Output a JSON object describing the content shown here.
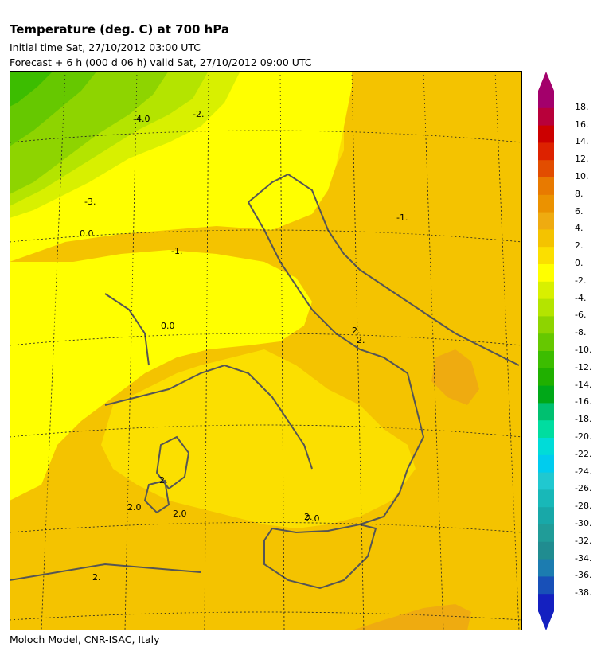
{
  "header": {
    "title": "Temperature (deg. C) at 700 hPa",
    "initial_time": "Initial time  Sat, 27/10/2012  03:00 UTC",
    "forecast": "Forecast  +    6 h  (000 d 06 h)  valid Sat, 27/10/2012 09:00 UTC"
  },
  "footer": {
    "credit": "Moloch Model, CNR-ISAC, Italy"
  },
  "map": {
    "contour_labels": [
      "-4.0",
      "-2.",
      "-3.",
      "0.0",
      "-1.",
      "0.0",
      "-1.",
      "2.",
      "2.",
      "2.",
      "2.0",
      "2.0",
      "2.0",
      "2.",
      "2."
    ]
  },
  "colorbar": {
    "labels": [
      "18.",
      "16.",
      "14.",
      "12.",
      "10.",
      "8.",
      "6.",
      "4.",
      "2.",
      "0.",
      "-2.",
      "-4.",
      "-6.",
      "-8.",
      "-10.",
      "-12.",
      "-14.",
      "-16.",
      "-18.",
      "-20.",
      "-22.",
      "-24.",
      "-26.",
      "-28.",
      "-30.",
      "-32.",
      "-34.",
      "-36.",
      "-38."
    ],
    "colors": [
      "#a3006b",
      "#b8003a",
      "#cc0000",
      "#dd2200",
      "#e24d00",
      "#e87a00",
      "#eb9200",
      "#efab10",
      "#f4c300",
      "#fbdf00",
      "#ffff00",
      "#d8f000",
      "#b4e400",
      "#8ed400",
      "#66c800",
      "#3cbd00",
      "#20b000",
      "#00a818",
      "#00c070",
      "#00dda0",
      "#00dcd8",
      "#00ccee",
      "#20c8d0",
      "#18b8b8",
      "#18a8a8",
      "#209c98",
      "#208c90",
      "#1c7cb0",
      "#1850b8",
      "#1420c0"
    ]
  }
}
